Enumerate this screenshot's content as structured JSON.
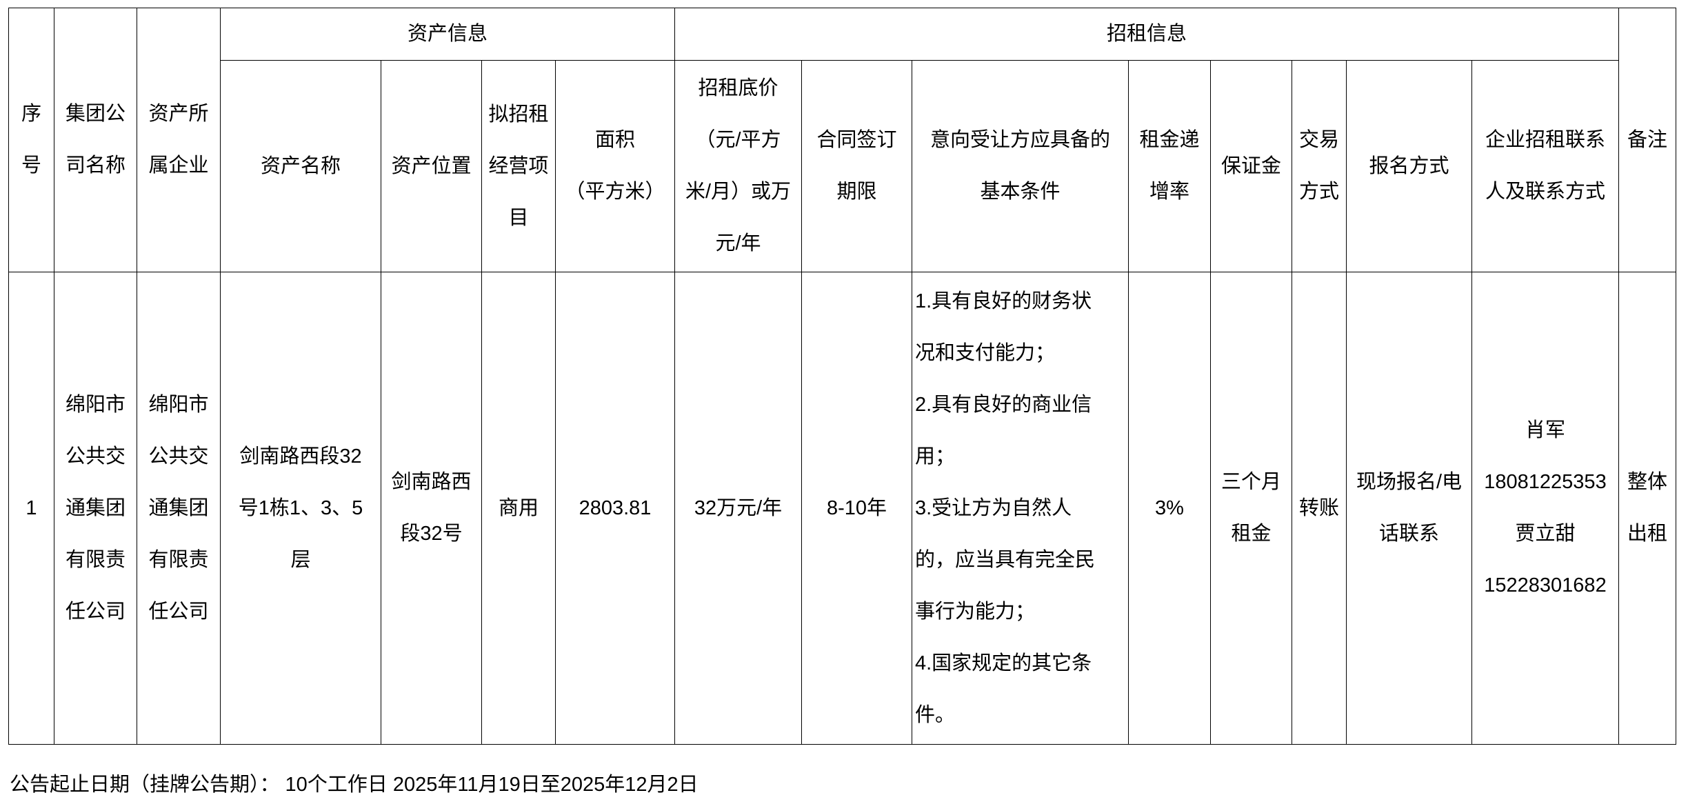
{
  "table": {
    "group_headers": {
      "asset_info": "资产信息",
      "lease_info": "招租信息"
    },
    "headers": {
      "seq": [
        "序",
        "号"
      ],
      "group_company": [
        "集团公",
        "司名称"
      ],
      "owner_company": [
        "资产所",
        "属企业"
      ],
      "asset_name": [
        "资产名称"
      ],
      "asset_location": [
        "资产位置"
      ],
      "business": [
        "拟招租",
        "经营项",
        "目"
      ],
      "area": [
        "面积",
        "（平方米）"
      ],
      "base_price": [
        "招租底价",
        "（元/平方",
        "米/月）或万",
        "元/年"
      ],
      "contract_term": [
        "合同签订",
        "期限"
      ],
      "conditions": [
        "意向受让方应具备的",
        "基本条件"
      ],
      "rent_increase": [
        "租金递",
        "增率"
      ],
      "deposit": [
        "保证金"
      ],
      "payment": [
        "交易",
        "方式"
      ],
      "registration": [
        "报名方式"
      ],
      "contact": [
        "企业招租联系",
        "人及联系方式"
      ],
      "remarks": [
        "备注"
      ]
    },
    "rows": [
      {
        "seq": [
          "1"
        ],
        "group_company": [
          "绵阳市",
          "公共交",
          "通集团",
          "有限责",
          "任公司"
        ],
        "owner_company": [
          "绵阳市",
          "公共交",
          "通集团",
          "有限责",
          "任公司"
        ],
        "asset_name": [
          "剑南路西段32",
          "号1栋1、3、5",
          "层"
        ],
        "asset_location": [
          "剑南路西",
          "段32号"
        ],
        "business": [
          "商用"
        ],
        "area": [
          "2803.81"
        ],
        "base_price": [
          "32万元/年"
        ],
        "contract_term": [
          "8-10年"
        ],
        "conditions": [
          "1.具有良好的财务状",
          "况和支付能力；",
          "2.具有良好的商业信",
          "用；",
          "3.受让方为自然人",
          "的，应当具有完全民",
          "事行为能力；",
          "4.国家规定的其它条",
          "件。"
        ],
        "rent_increase": [
          "3%"
        ],
        "deposit": [
          "三个月",
          "租金"
        ],
        "payment": [
          "转账"
        ],
        "registration": [
          "现场报名/电",
          "话联系"
        ],
        "contact": [
          "肖军",
          "18081225353",
          "贾立甜",
          "15228301682"
        ],
        "remarks": [
          "整体",
          "出租"
        ]
      }
    ]
  },
  "footer": "公告起止日期（挂牌公告期）：  10个工作日 2025年11月19日至2025年12月2日"
}
